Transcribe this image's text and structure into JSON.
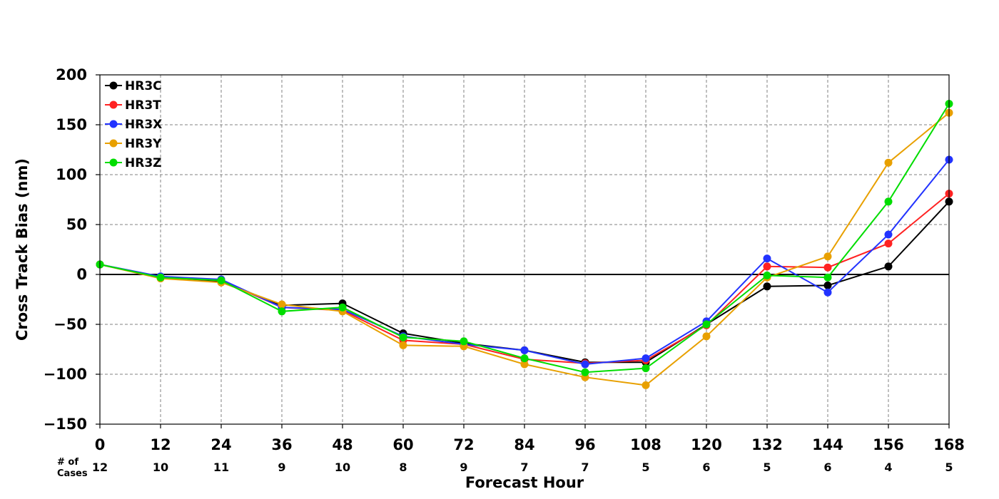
{
  "chart_data": {
    "type": "line",
    "xlabel": "Forecast Hour",
    "ylabel": "Cross Track Bias (nm)",
    "xlim": [
      0,
      168
    ],
    "ylim": [
      -150,
      200
    ],
    "x": [
      0,
      12,
      24,
      36,
      48,
      60,
      72,
      84,
      96,
      108,
      120,
      132,
      144,
      156,
      168
    ],
    "yticks": [
      200,
      150,
      100,
      50,
      0,
      -50,
      -100,
      -150
    ],
    "grid": true,
    "legend_position": "top-left",
    "cases_label": "# of\nCases",
    "cases": [
      12,
      10,
      11,
      9,
      10,
      8,
      9,
      7,
      7,
      5,
      6,
      5,
      6,
      4,
      5
    ],
    "series": [
      {
        "name": "HR3C",
        "color": "#000000",
        "values": [
          10,
          -3,
          -7,
          -31,
          -29,
          -59,
          -69,
          -76,
          -88,
          -88,
          -50,
          -12,
          -11,
          8,
          73
        ]
      },
      {
        "name": "HR3T",
        "color": "#ff2222",
        "values": [
          10,
          -3,
          -6,
          -33,
          -36,
          -66,
          -70,
          -85,
          -89,
          -86,
          -51,
          8,
          7,
          31,
          81
        ]
      },
      {
        "name": "HR3X",
        "color": "#2233ff",
        "values": [
          10,
          -2,
          -5,
          -33,
          -35,
          -62,
          -70,
          -76,
          -90,
          -84,
          -47,
          16,
          -18,
          40,
          115
        ]
      },
      {
        "name": "HR3Y",
        "color": "#e8a000",
        "values": [
          10,
          -4,
          -8,
          -30,
          -37,
          -71,
          -72,
          -90,
          -103,
          -111,
          -62,
          -3,
          18,
          112,
          162
        ]
      },
      {
        "name": "HR3Z",
        "color": "#00dd00",
        "values": [
          10,
          -3,
          -6,
          -37,
          -33,
          -63,
          -67,
          -84,
          -98,
          -94,
          -50,
          -1,
          -3,
          73,
          171
        ]
      }
    ]
  }
}
